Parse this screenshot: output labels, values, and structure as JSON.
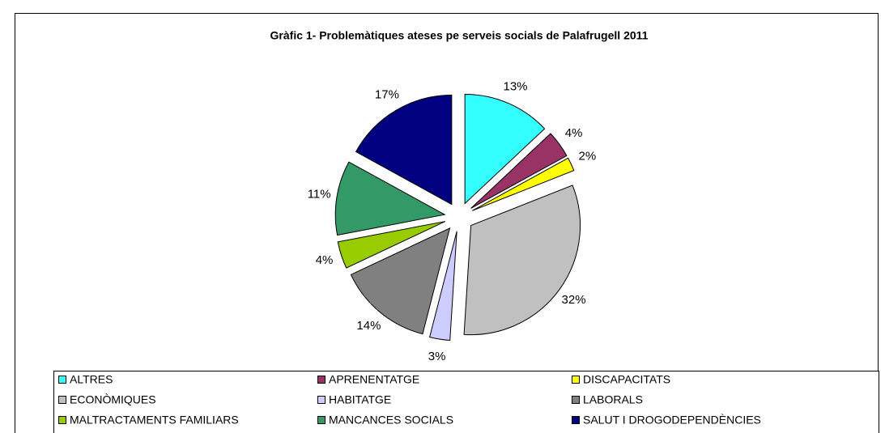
{
  "chart_data": {
    "type": "pie",
    "title": "Gràfic 1- Problemàtiques ateses pe serveis socials de Palafrugell 2011",
    "categories": [
      "ALTRES",
      "APRENENTATGE",
      "DISCAPACITATS",
      "ECONÒMIQUES",
      "HABITATGE",
      "LABORALS",
      "MALTRACTAMENTS FAMILIARS",
      "MANCANCES SOCIALS",
      "SALUT I DROGODEPENDÈNCIES"
    ],
    "values": [
      13,
      4,
      2,
      32,
      3,
      14,
      4,
      11,
      17
    ],
    "value_labels": [
      "13%",
      "4%",
      "2%",
      "32%",
      "3%",
      "14%",
      "4%",
      "11%",
      "17%"
    ],
    "colors": [
      "#33ffff",
      "#993366",
      "#ffff00",
      "#c0c0c0",
      "#ccccff",
      "#808080",
      "#99cc00",
      "#339966",
      "#000080"
    ],
    "legend": "bottom"
  }
}
